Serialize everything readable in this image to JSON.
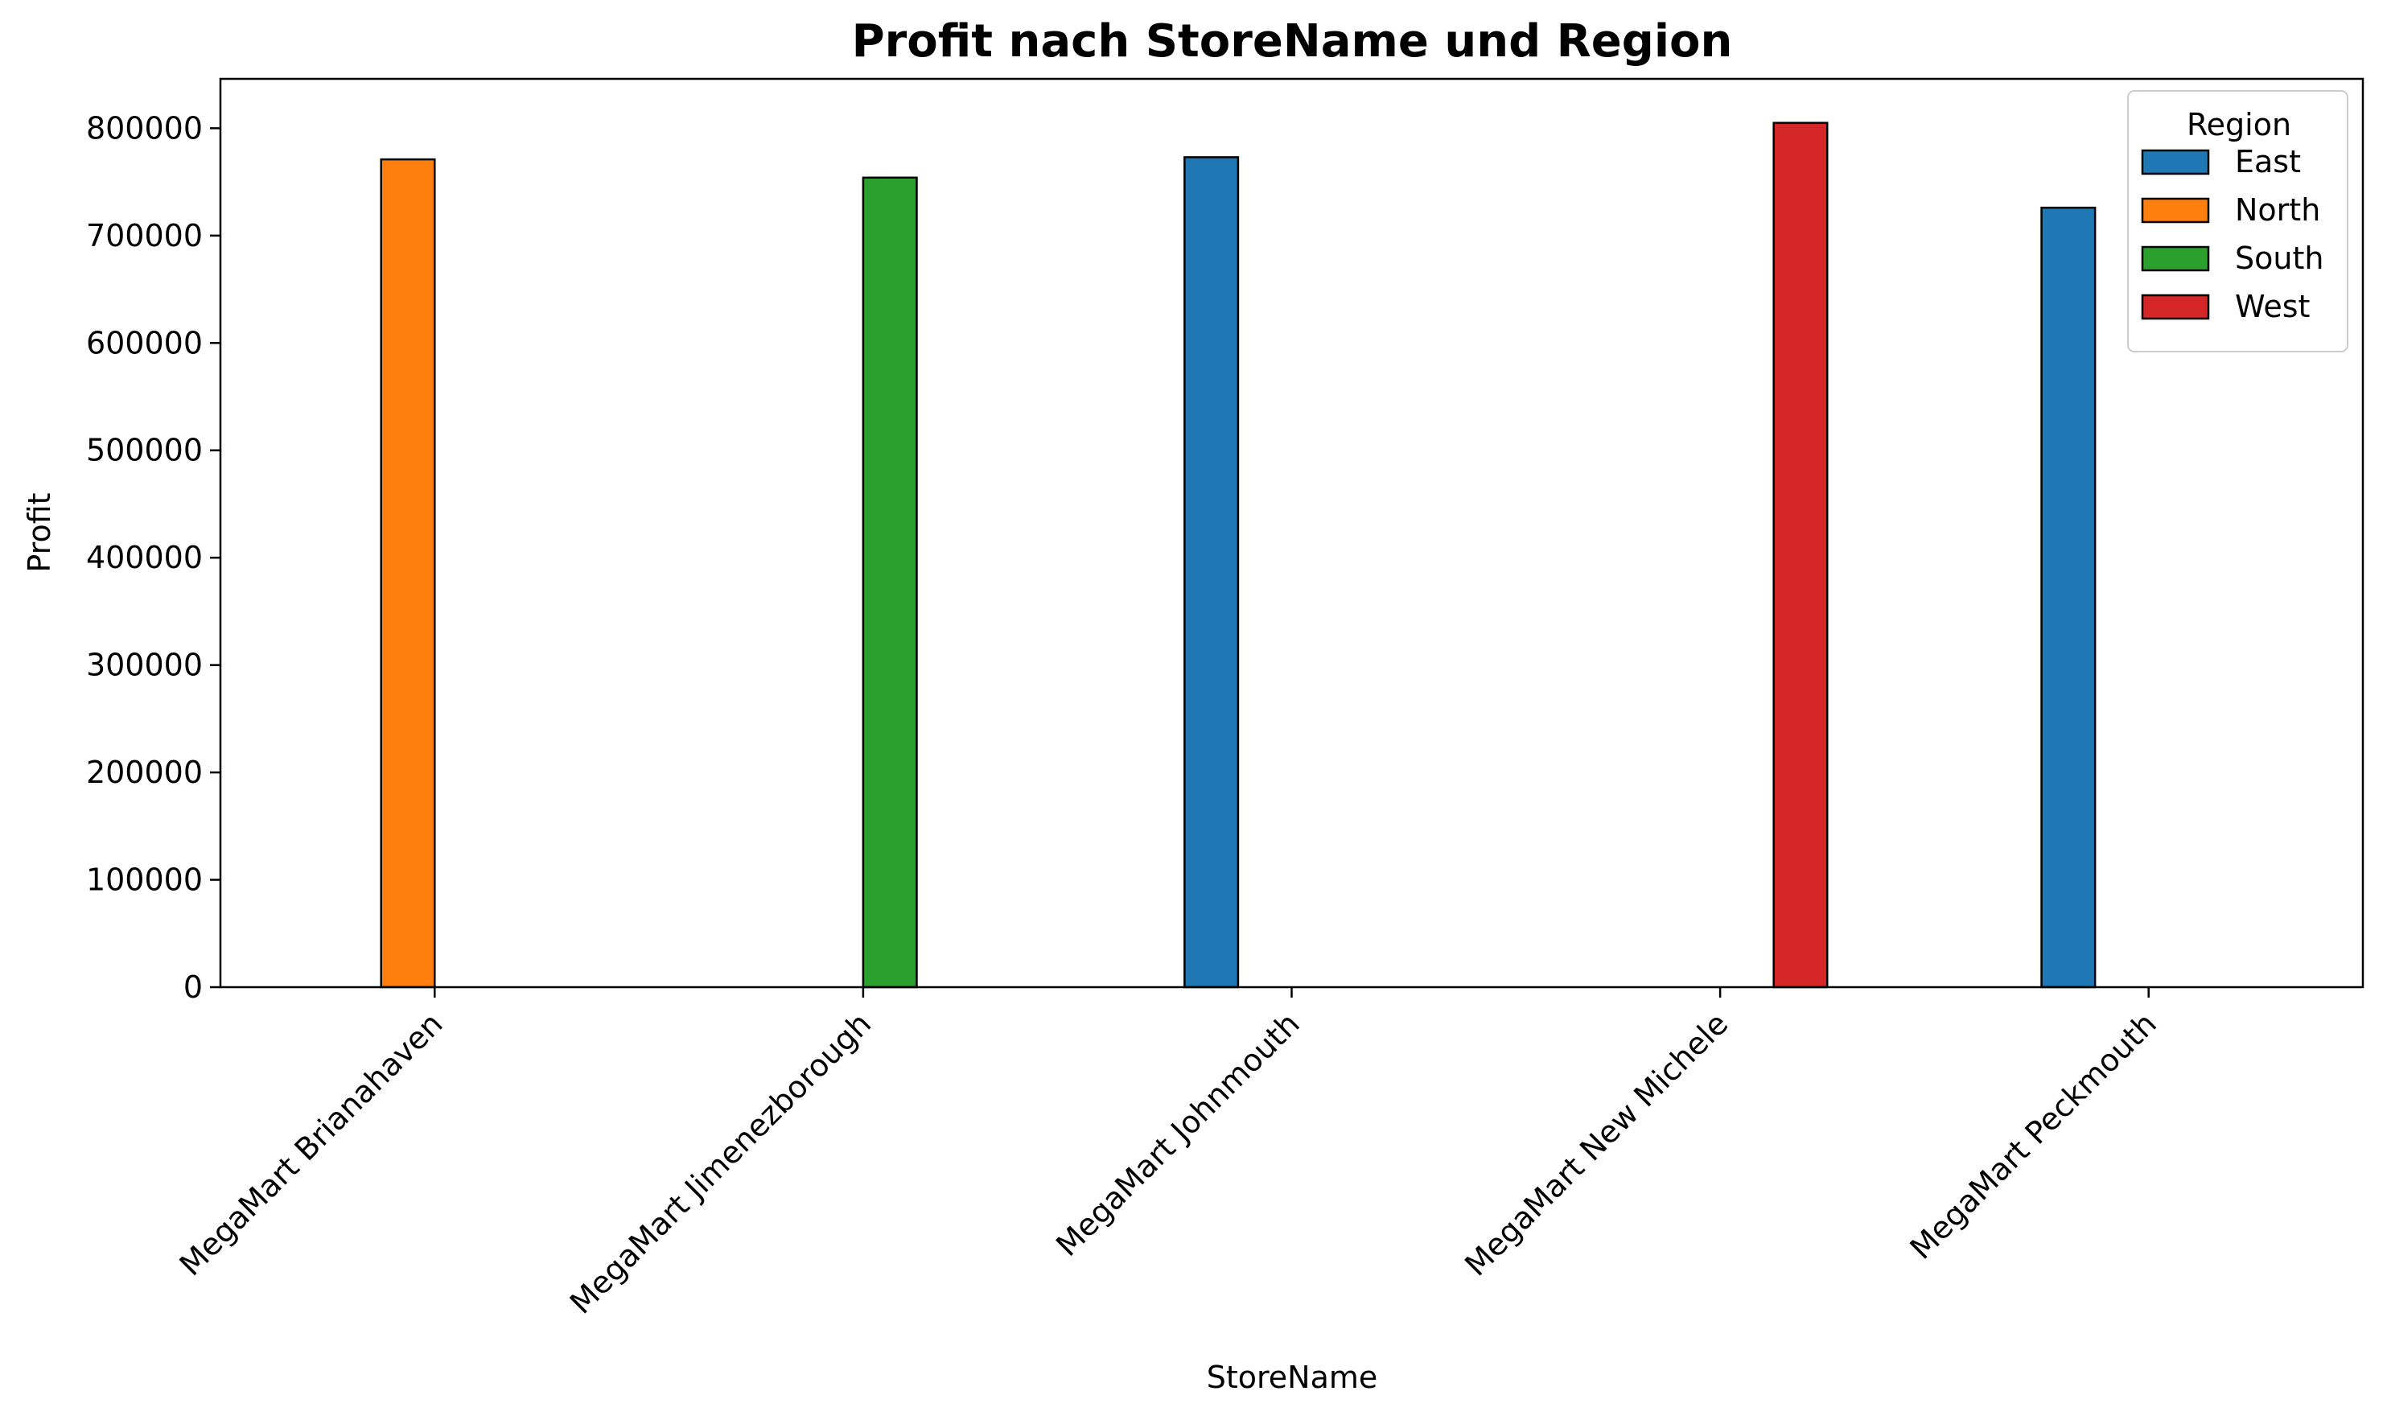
{
  "chart_data": {
    "type": "bar",
    "title": "Profit nach StoreName und Region",
    "xlabel": "StoreName",
    "ylabel": "Profit",
    "categories": [
      "MegaMart Brianahaven",
      "MegaMart Jimenezborough",
      "MegaMart Johnmouth",
      "MegaMart New Michele",
      "MegaMart Peckmouth"
    ],
    "yticks": [
      "0",
      "100000",
      "200000",
      "300000",
      "400000",
      "500000",
      "600000",
      "700000",
      "800000"
    ],
    "ylim": [
      0,
      846000
    ],
    "grid": false,
    "legend": {
      "title": "Region",
      "placement": "top-right"
    },
    "series": [
      {
        "name": "East",
        "color": "#1f77b4",
        "values": [
          0,
          0,
          773000,
          0,
          726000
        ]
      },
      {
        "name": "North",
        "color": "#ff7f0e",
        "values": [
          771000,
          0,
          0,
          0,
          0
        ]
      },
      {
        "name": "South",
        "color": "#2ca02c",
        "values": [
          0,
          754000,
          0,
          0,
          0
        ]
      },
      {
        "name": "West",
        "color": "#d62728",
        "values": [
          0,
          0,
          0,
          805000,
          0
        ]
      }
    ]
  }
}
